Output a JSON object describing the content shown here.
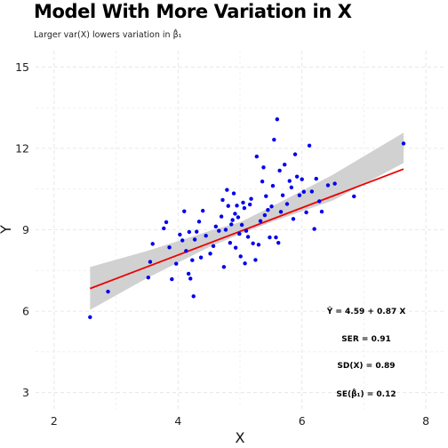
{
  "chart_data": {
    "type": "scatter",
    "title": "Model With More Variation in X",
    "subtitle": "Larger var(X) lowers variation in β̂₁",
    "xlabel": "X",
    "ylabel": "Y",
    "xlim": [
      1.7,
      8.3
    ],
    "ylim": [
      2.4,
      15.6
    ],
    "xticks": [
      2,
      4,
      6,
      8
    ],
    "yticks": [
      3,
      6,
      9,
      12,
      15
    ],
    "grid": true,
    "colors": {
      "points": "#0000ee",
      "fit_line": "#ee0000",
      "band": "#cccccc",
      "grid": "#e2e2e2"
    },
    "series": [
      {
        "points": [
          [
            2.58,
            5.78
          ],
          [
            2.87,
            6.72
          ],
          [
            3.52,
            7.24
          ],
          [
            3.55,
            7.82
          ],
          [
            3.59,
            8.48
          ],
          [
            3.77,
            9.05
          ],
          [
            3.81,
            9.28
          ],
          [
            3.86,
            8.35
          ],
          [
            3.9,
            7.18
          ],
          [
            3.97,
            7.75
          ],
          [
            4.03,
            8.82
          ],
          [
            4.07,
            8.61
          ],
          [
            4.1,
            9.68
          ],
          [
            4.13,
            8.22
          ],
          [
            4.17,
            7.38
          ],
          [
            4.18,
            8.92
          ],
          [
            4.2,
            7.2
          ],
          [
            4.23,
            7.88
          ],
          [
            4.25,
            6.55
          ],
          [
            4.27,
            8.64
          ],
          [
            4.3,
            8.93
          ],
          [
            4.34,
            9.3
          ],
          [
            4.37,
            7.98
          ],
          [
            4.4,
            9.7
          ],
          [
            4.45,
            8.78
          ],
          [
            4.52,
            8.12
          ],
          [
            4.57,
            8.4
          ],
          [
            4.61,
            9.12
          ],
          [
            4.66,
            8.96
          ],
          [
            4.7,
            9.49
          ],
          [
            4.72,
            10.1
          ],
          [
            4.74,
            7.63
          ],
          [
            4.77,
            9.0
          ],
          [
            4.79,
            10.47
          ],
          [
            4.81,
            9.88
          ],
          [
            4.84,
            8.52
          ],
          [
            4.86,
            9.2
          ],
          [
            4.88,
            9.36
          ],
          [
            4.9,
            10.34
          ],
          [
            4.92,
            9.59
          ],
          [
            4.93,
            8.34
          ],
          [
            4.95,
            9.89
          ],
          [
            4.97,
            9.46
          ],
          [
            4.99,
            8.85
          ],
          [
            5.01,
            8.02
          ],
          [
            5.03,
            9.18
          ],
          [
            5.05,
            10.0
          ],
          [
            5.07,
            9.8
          ],
          [
            5.08,
            7.76
          ],
          [
            5.1,
            8.96
          ],
          [
            5.13,
            8.74
          ],
          [
            5.16,
            9.93
          ],
          [
            5.18,
            10.14
          ],
          [
            5.21,
            8.5
          ],
          [
            5.25,
            7.89
          ],
          [
            5.27,
            11.7
          ],
          [
            5.3,
            8.45
          ],
          [
            5.33,
            9.32
          ],
          [
            5.36,
            10.78
          ],
          [
            5.38,
            11.3
          ],
          [
            5.4,
            9.54
          ],
          [
            5.42,
            10.24
          ],
          [
            5.45,
            9.73
          ],
          [
            5.48,
            8.72
          ],
          [
            5.51,
            9.86
          ],
          [
            5.53,
            10.62
          ],
          [
            5.55,
            12.32
          ],
          [
            5.58,
            8.72
          ],
          [
            5.6,
            13.07
          ],
          [
            5.62,
            8.52
          ],
          [
            5.64,
            11.18
          ],
          [
            5.66,
            9.66
          ],
          [
            5.69,
            10.27
          ],
          [
            5.72,
            11.4
          ],
          [
            5.76,
            9.95
          ],
          [
            5.8,
            10.8
          ],
          [
            5.83,
            10.56
          ],
          [
            5.86,
            9.4
          ],
          [
            5.89,
            11.78
          ],
          [
            5.92,
            10.96
          ],
          [
            5.96,
            10.27
          ],
          [
            6.0,
            10.86
          ],
          [
            6.03,
            10.4
          ],
          [
            6.07,
            9.64
          ],
          [
            6.12,
            12.1
          ],
          [
            6.16,
            10.41
          ],
          [
            6.2,
            9.03
          ],
          [
            6.23,
            10.88
          ],
          [
            6.28,
            10.05
          ],
          [
            6.32,
            9.67
          ],
          [
            6.42,
            10.64
          ],
          [
            6.53,
            10.7
          ],
          [
            6.84,
            10.23
          ],
          [
            7.64,
            12.18
          ]
        ]
      }
    ],
    "fit": {
      "intercept": 4.59,
      "slope": 0.87,
      "x_range": [
        2.58,
        7.64
      ]
    },
    "band": {
      "upper": [
        [
          2.58,
          7.63
        ],
        [
          3.5,
          8.22
        ],
        [
          4.5,
          8.95
        ],
        [
          5.0,
          9.28
        ],
        [
          5.5,
          9.84
        ],
        [
          6.5,
          11.03
        ],
        [
          7.64,
          12.58
        ]
      ],
      "lower": [
        [
          2.58,
          6.05
        ],
        [
          3.5,
          7.22
        ],
        [
          4.5,
          8.36
        ],
        [
          5.0,
          8.84
        ],
        [
          5.5,
          9.28
        ],
        [
          6.5,
          10.08
        ],
        [
          7.64,
          11.46
        ]
      ]
    },
    "annotations": [
      {
        "text": "Ŷ = 4.59 + 0.87 X"
      },
      {
        "text": "SER = 0.91"
      },
      {
        "text": "SD(X) = 0.89"
      },
      {
        "text": "SE(β̂₁) = 0.12"
      }
    ]
  }
}
